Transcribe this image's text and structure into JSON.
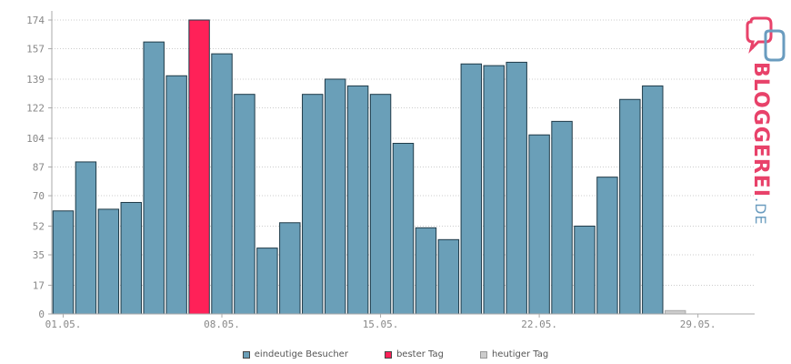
{
  "chart_data": {
    "type": "bar",
    "categories": [
      "01.05.",
      "02.05.",
      "03.05.",
      "04.05.",
      "05.05.",
      "06.05.",
      "07.05.",
      "08.05.",
      "09.05.",
      "10.05.",
      "11.05.",
      "12.05.",
      "13.05.",
      "14.05.",
      "15.05.",
      "16.05.",
      "17.05.",
      "18.05.",
      "19.05.",
      "20.05.",
      "21.05.",
      "22.05.",
      "23.05.",
      "24.05.",
      "25.05.",
      "26.05.",
      "27.05.",
      "28.05.",
      "29.05.",
      "30.05.",
      "31.05."
    ],
    "x_tick_labels": [
      "01.05.",
      "08.05.",
      "15.05.",
      "22.05.",
      "29.05."
    ],
    "x_tick_indices": [
      0,
      7,
      14,
      21,
      28
    ],
    "series": [
      {
        "name": "eindeutige Besucher",
        "values": [
          61,
          90,
          62,
          66,
          161,
          141,
          null,
          154,
          130,
          39,
          54,
          130,
          139,
          135,
          130,
          101,
          51,
          44,
          148,
          147,
          149,
          106,
          114,
          52,
          81,
          127,
          135,
          null,
          null,
          null,
          null
        ]
      },
      {
        "name": "bester Tag",
        "values": [
          null,
          null,
          null,
          null,
          null,
          null,
          174,
          null,
          null,
          null,
          null,
          null,
          null,
          null,
          null,
          null,
          null,
          null,
          null,
          null,
          null,
          null,
          null,
          null,
          null,
          null,
          null,
          null,
          null,
          null,
          null
        ]
      },
      {
        "name": "heutiger Tag",
        "values": [
          null,
          null,
          null,
          null,
          null,
          null,
          null,
          null,
          null,
          null,
          null,
          null,
          null,
          null,
          null,
          null,
          null,
          null,
          null,
          null,
          null,
          null,
          null,
          null,
          null,
          null,
          null,
          2,
          null,
          null,
          null
        ]
      }
    ],
    "y_ticks": [
      0,
      17,
      35,
      52,
      70,
      87,
      104,
      122,
      139,
      157,
      174
    ],
    "ylim": [
      0,
      174
    ],
    "grid": true,
    "legend_position": "bottom-center",
    "colors": {
      "visitors": "#6a9fb8",
      "best": "#ff2158",
      "today": "#cccccc",
      "bar_border": "#1f3a48",
      "grid": "#cccccc",
      "axis": "#aaaaaa"
    }
  },
  "legend": {
    "items": [
      {
        "label": "eindeutige Besucher",
        "color": "#6a9fb8"
      },
      {
        "label": "bester Tag",
        "color": "#ff2158"
      },
      {
        "label": "heutiger Tag",
        "color": "#cccccc"
      }
    ]
  },
  "logo": {
    "text": "BLOGGEREI",
    "suffix": ".DE",
    "icon": "bloggerei-logo-icon"
  }
}
